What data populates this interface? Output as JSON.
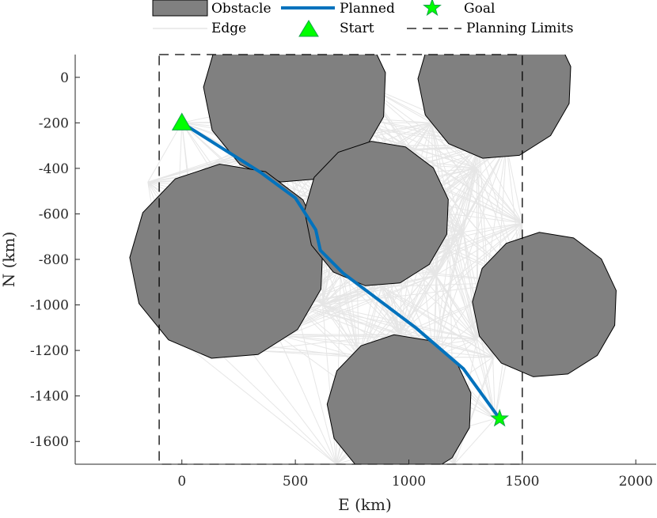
{
  "chart_data": {
    "type": "scatter",
    "title": "",
    "xlabel": "E (km)",
    "ylabel": "N (km)",
    "xlim": [
      -470,
      2090
    ],
    "ylim": [
      -1700,
      100
    ],
    "xticks": [
      0,
      500,
      1000,
      1500,
      2000
    ],
    "yticks": [
      0,
      -200,
      -400,
      -600,
      -800,
      -1000,
      -1200,
      -1400,
      -1600
    ],
    "grid": false,
    "legend": {
      "placement": "top",
      "entries": [
        "Obstacle",
        "Planned",
        "Goal",
        "Edge",
        "Start",
        "Planning Limits"
      ]
    },
    "colors": {
      "obstacle": "#808080",
      "planned": "#0072bd",
      "edge": "#e6e6e6",
      "marker": "#00ff00"
    },
    "planning_limits": {
      "e_min": -100,
      "e_max": 1500,
      "n_min": -1700,
      "n_max": 100
    },
    "obstacles": [
      {
        "name": "obstacle-1",
        "center": [
          500,
          -60
        ],
        "radius": 405
      },
      {
        "name": "obstacle-2",
        "center": [
          1380,
          -20
        ],
        "radius": 340
      },
      {
        "name": "obstacle-3",
        "center": [
          200,
          -810
        ],
        "radius": 430
      },
      {
        "name": "obstacle-4",
        "center": [
          860,
          -600
        ],
        "radius": 320
      },
      {
        "name": "obstacle-5",
        "center": [
          1600,
          -1000
        ],
        "radius": 320
      },
      {
        "name": "obstacle-6",
        "center": [
          960,
          -1450
        ],
        "radius": 320
      }
    ],
    "edge_nodes": [
      [
        0,
        -200
      ],
      [
        270,
        -350
      ],
      [
        460,
        -350
      ],
      [
        660,
        -200
      ],
      [
        800,
        -180
      ],
      [
        1100,
        -200
      ],
      [
        1310,
        -300
      ],
      [
        1430,
        -300
      ],
      [
        -150,
        -460
      ],
      [
        30,
        -450
      ],
      [
        130,
        -380
      ],
      [
        430,
        -600
      ],
      [
        620,
        -530
      ],
      [
        680,
        -450
      ],
      [
        760,
        -330
      ],
      [
        990,
        -300
      ],
      [
        1140,
        -480
      ],
      [
        1240,
        -680
      ],
      [
        1180,
        -750
      ],
      [
        1120,
        -870
      ],
      [
        1300,
        -1150
      ],
      [
        1370,
        -1230
      ],
      [
        620,
        -1000
      ],
      [
        500,
        -1000
      ],
      [
        420,
        -1130
      ],
      [
        300,
        -1200
      ],
      [
        100,
        -1150
      ],
      [
        -40,
        -1130
      ],
      [
        700,
        -820
      ],
      [
        880,
        -920
      ],
      [
        780,
        -1230
      ],
      [
        960,
        -1130
      ],
      [
        1110,
        -1230
      ],
      [
        1380,
        -1500
      ],
      [
        680,
        -1700
      ],
      [
        1200,
        -1700
      ],
      [
        1500,
        -900
      ],
      [
        1500,
        -640
      ],
      [
        800,
        -30
      ],
      [
        1300,
        -400
      ]
    ],
    "planned_path": [
      [
        0,
        -200
      ],
      [
        350,
        -420
      ],
      [
        500,
        -530
      ],
      [
        590,
        -670
      ],
      [
        610,
        -760
      ],
      [
        710,
        -860
      ],
      [
        1030,
        -1100
      ],
      [
        1240,
        -1280
      ],
      [
        1400,
        -1500
      ]
    ],
    "start": [
      0,
      -200
    ],
    "goal": [
      1400,
      -1500
    ]
  }
}
